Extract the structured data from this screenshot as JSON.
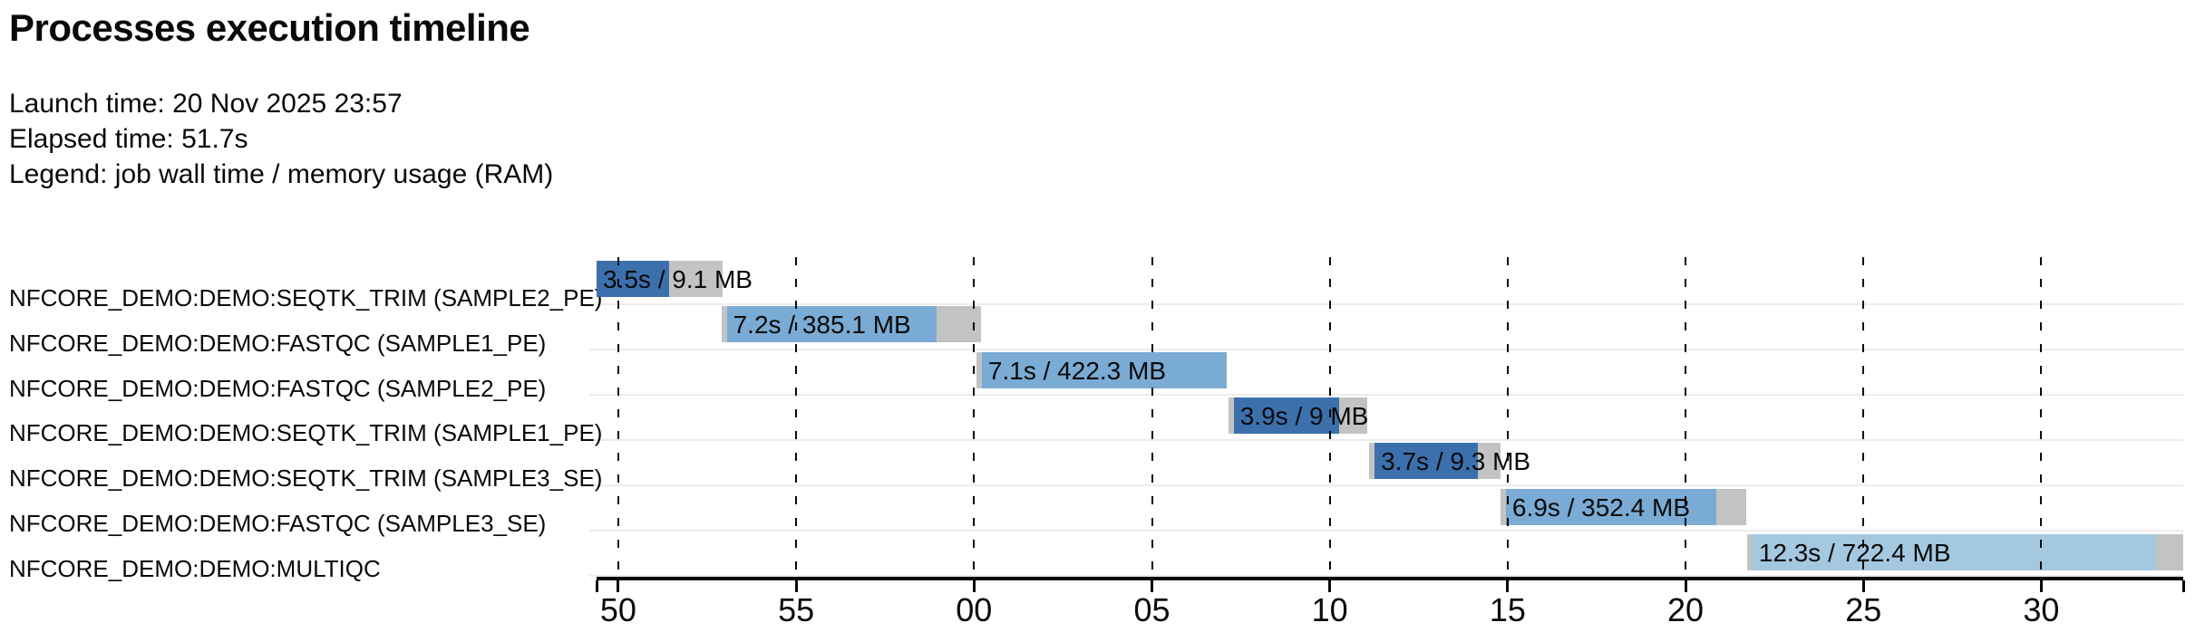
{
  "header": {
    "title": "Processes execution timeline",
    "launch_time_label": "Launch time: 20 Nov 2025 23:57",
    "elapsed_time_label": "Elapsed time: 51.7s",
    "legend_label": "Legend: job wall time / memory usage (RAM)"
  },
  "colors": {
    "seqtk_trim": "#3c70ad",
    "fastqc": "#7aabd4",
    "multiqc": "#a5c8e1",
    "overhead_gray": "#c3c3c3",
    "row_separator": "#ececec",
    "axis": "#0a0a0a",
    "text": "#0a0a0a"
  },
  "chart_data": {
    "type": "bar",
    "subtype": "gantt-process-timeline",
    "title": "Processes execution timeline",
    "launch_time": "20 Nov 2025 23:57",
    "elapsed_time": "51.7s",
    "legend": "job wall time / memory usage (RAM)",
    "grid": "dashed-vertical",
    "legend_position": "header-text",
    "x_axis": {
      "unit": "seconds (clock seconds, wrapping at minute 23:57 -> 23:58)",
      "tick_labels": [
        "50",
        "55",
        "00",
        "05",
        "10",
        "15",
        "20",
        "25",
        "30"
      ],
      "tick_seconds": [
        0,
        5,
        10,
        15,
        20,
        25,
        30,
        35,
        40
      ],
      "domain_seconds": [
        -0.61,
        43.99
      ]
    },
    "tasks": [
      {
        "label": "NFCORE_DEMO:DEMO:SEQTK_TRIM (SAMPLE2_PE)",
        "bar_label": "3.5s / 9.1 MB",
        "wall_time": "3.5s",
        "memory": "9.1 MB",
        "color_key": "seqtk_trim",
        "start_s": -0.61,
        "run_start_s": -0.61,
        "run_end_s": 1.43,
        "end_s": 2.93
      },
      {
        "label": "NFCORE_DEMO:DEMO:FASTQC (SAMPLE1_PE)",
        "bar_label": "7.2s / 385.1 MB",
        "wall_time": "7.2s",
        "memory": "385.1 MB",
        "color_key": "fastqc",
        "start_s": 2.91,
        "run_start_s": 3.05,
        "run_end_s": 8.95,
        "end_s": 10.19
      },
      {
        "label": "NFCORE_DEMO:DEMO:FASTQC (SAMPLE2_PE)",
        "bar_label": "7.1s / 422.3 MB",
        "wall_time": "7.1s",
        "memory": "422.3 MB",
        "color_key": "fastqc",
        "start_s": 10.07,
        "run_start_s": 10.22,
        "run_end_s": 17.1,
        "end_s": 17.1
      },
      {
        "label": "NFCORE_DEMO:DEMO:SEQTK_TRIM (SAMPLE1_PE)",
        "bar_label": "3.9s / 9 MB",
        "wall_time": "3.9s",
        "memory": "9 MB",
        "color_key": "seqtk_trim",
        "start_s": 17.15,
        "run_start_s": 17.3,
        "run_end_s": 20.26,
        "end_s": 21.05
      },
      {
        "label": "NFCORE_DEMO:DEMO:SEQTK_TRIM (SAMPLE3_SE)",
        "bar_label": "3.7s / 9.3 MB",
        "wall_time": "3.7s",
        "memory": "9.3 MB",
        "color_key": "seqtk_trim",
        "start_s": 21.1,
        "run_start_s": 21.26,
        "run_end_s": 24.16,
        "end_s": 24.8
      },
      {
        "label": "NFCORE_DEMO:DEMO:FASTQC (SAMPLE3_SE)",
        "bar_label": "6.9s / 352.4 MB",
        "wall_time": "6.9s",
        "memory": "352.4 MB",
        "color_key": "fastqc",
        "start_s": 24.8,
        "run_start_s": 24.95,
        "run_end_s": 30.86,
        "end_s": 31.7
      },
      {
        "label": "NFCORE_DEMO:DEMO:MULTIQC",
        "bar_label": "12.3s / 722.4 MB",
        "wall_time": "12.3s",
        "memory": "722.4 MB",
        "color_key": "multiqc",
        "start_s": 31.73,
        "run_start_s": 31.88,
        "run_end_s": 43.22,
        "end_s": 43.99
      }
    ]
  }
}
